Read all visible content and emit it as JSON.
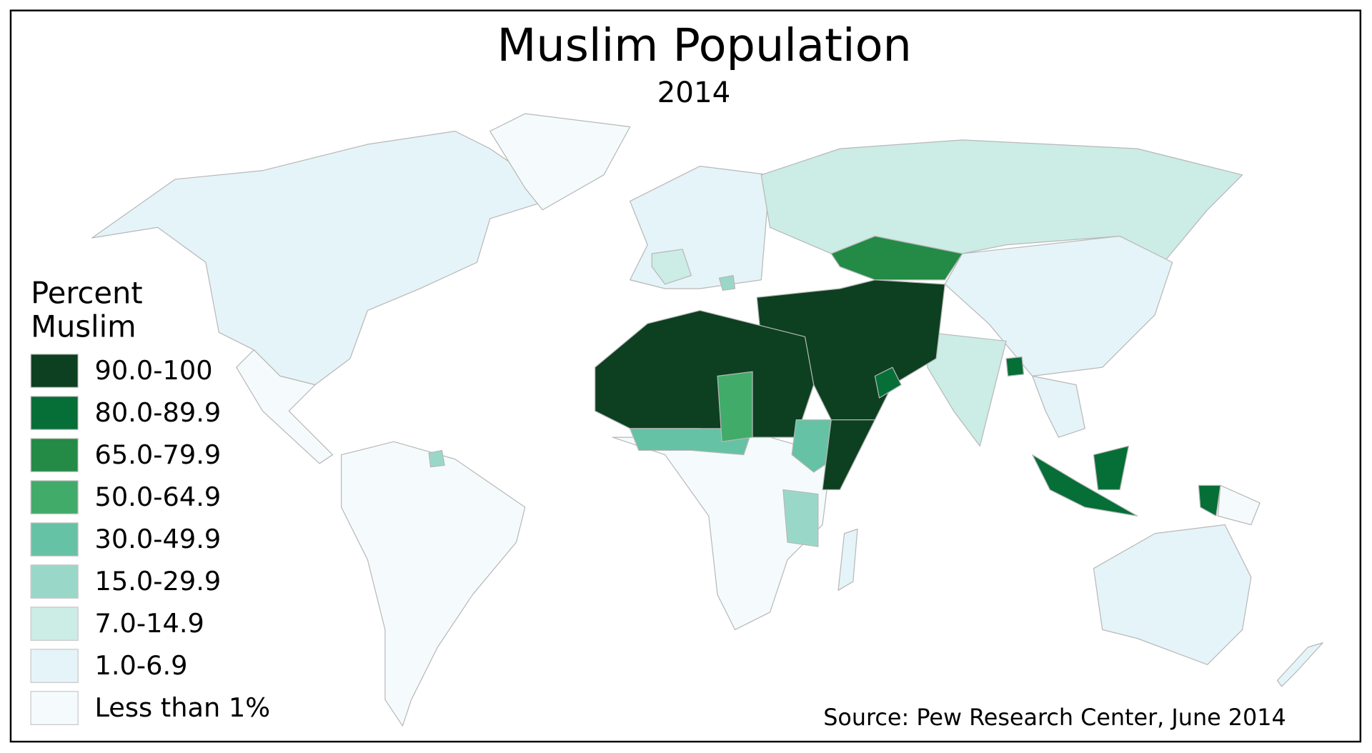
{
  "map": {
    "title": "Muslim Population",
    "subtitle": "2014",
    "legend": {
      "title": [
        "Percent",
        "Muslim"
      ],
      "items": [
        {
          "label": "90.0-100",
          "color": "#0c4020"
        },
        {
          "label": "80.0-89.9",
          "color": "#066e37"
        },
        {
          "label": "65.0-79.9",
          "color": "#238b45"
        },
        {
          "label": "50.0-64.9",
          "color": "#41ab6a"
        },
        {
          "label": "30.0-49.9",
          "color": "#66c2a4"
        },
        {
          "label": "15.0-29.9",
          "color": "#99d8c9"
        },
        {
          "label": "7.0-14.9",
          "color": "#ccece6"
        },
        {
          "label": "1.0-6.9",
          "color": "#e5f4f8"
        },
        {
          "label": "Less than 1%",
          "color": "#f5fbfc"
        }
      ]
    },
    "source": "Source: Pew Research Center, June 2014"
  }
}
